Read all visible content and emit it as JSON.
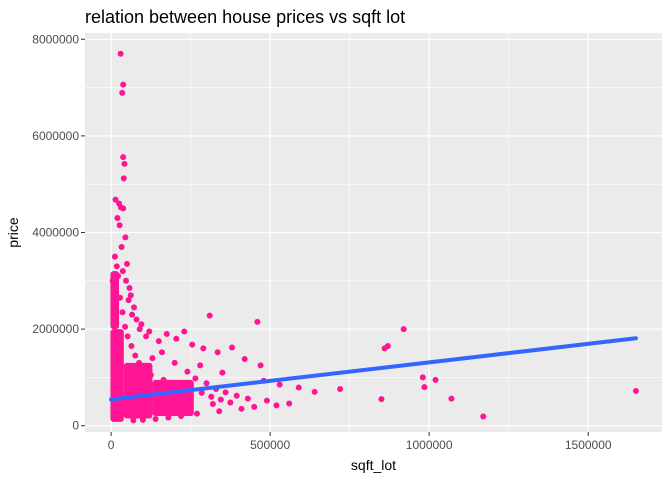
{
  "chart_data": {
    "type": "scatter",
    "title": "relation between house prices vs sqft lot",
    "xlabel": "sqft_lot",
    "ylabel": "price",
    "xlim": [
      -82000,
      1732000
    ],
    "ylim": [
      -130000,
      8130000
    ],
    "x_ticks": [
      0,
      500000,
      1000000,
      1500000
    ],
    "x_tick_labels": [
      "0",
      "500000",
      "1000000",
      "1500000"
    ],
    "y_ticks": [
      0,
      2000000,
      4000000,
      6000000,
      8000000
    ],
    "y_tick_labels": [
      "0",
      "2000000",
      "4000000",
      "6000000",
      "8000000"
    ],
    "grid": true,
    "point_color": "#FF1493",
    "trend_color": "#3366FF",
    "background_color": "#EBEBEB",
    "trend_line": {
      "method": "linear",
      "x": [
        0,
        1650000
      ],
      "y": [
        545000,
        1810000
      ]
    },
    "points": [
      [
        30000,
        7700000
      ],
      [
        38000,
        7060000
      ],
      [
        35000,
        6890000
      ],
      [
        38000,
        5560000
      ],
      [
        42000,
        5420000
      ],
      [
        40000,
        5120000
      ],
      [
        14000,
        4680000
      ],
      [
        25000,
        4600000
      ],
      [
        31000,
        4520000
      ],
      [
        38000,
        4500000
      ],
      [
        20000,
        4300000
      ],
      [
        27000,
        4150000
      ],
      [
        45000,
        3900000
      ],
      [
        33000,
        3700000
      ],
      [
        12000,
        3500000
      ],
      [
        50000,
        3350000
      ],
      [
        37000,
        3200000
      ],
      [
        22000,
        3100000
      ],
      [
        47000,
        3000000
      ],
      [
        58000,
        2850000
      ],
      [
        62000,
        2700000
      ],
      [
        55000,
        2600000
      ],
      [
        72000,
        2450000
      ],
      [
        66000,
        2300000
      ],
      [
        80000,
        2200000
      ],
      [
        95000,
        2100000
      ],
      [
        90000,
        2000000
      ],
      [
        120000,
        1950000
      ],
      [
        110000,
        1850000
      ],
      [
        150000,
        1750000
      ],
      [
        175000,
        1900000
      ],
      [
        205000,
        1800000
      ],
      [
        230000,
        1950000
      ],
      [
        255000,
        1680000
      ],
      [
        310000,
        2280000
      ],
      [
        290000,
        1600000
      ],
      [
        335000,
        1520000
      ],
      [
        380000,
        1620000
      ],
      [
        460000,
        2150000
      ],
      [
        420000,
        1380000
      ],
      [
        470000,
        1250000
      ],
      [
        350000,
        1100000
      ],
      [
        280000,
        1250000
      ],
      [
        160000,
        1520000
      ],
      [
        130000,
        1400000
      ],
      [
        200000,
        1300000
      ],
      [
        240000,
        1120000
      ],
      [
        265000,
        980000
      ],
      [
        300000,
        880000
      ],
      [
        330000,
        760000
      ],
      [
        360000,
        690000
      ],
      [
        395000,
        620000
      ],
      [
        430000,
        560000
      ],
      [
        490000,
        520000
      ],
      [
        520000,
        420000
      ],
      [
        560000,
        460000
      ],
      [
        450000,
        390000
      ],
      [
        410000,
        350000
      ],
      [
        340000,
        300000
      ],
      [
        270000,
        250000
      ],
      [
        220000,
        200000
      ],
      [
        180000,
        170000
      ],
      [
        140000,
        140000
      ],
      [
        100000,
        120000
      ],
      [
        70000,
        110000
      ],
      [
        480000,
        930000
      ],
      [
        530000,
        850000
      ],
      [
        590000,
        790000
      ],
      [
        640000,
        700000
      ],
      [
        720000,
        760000
      ],
      [
        850000,
        550000
      ],
      [
        860000,
        1600000
      ],
      [
        870000,
        1650000
      ],
      [
        920000,
        2000000
      ],
      [
        980000,
        1000000
      ],
      [
        1020000,
        950000
      ],
      [
        985000,
        800000
      ],
      [
        1070000,
        560000
      ],
      [
        1170000,
        190000
      ],
      [
        1650000,
        720000
      ],
      [
        10000,
        2200000
      ],
      [
        15000,
        1600000
      ],
      [
        20000,
        1200000
      ],
      [
        25000,
        900000
      ],
      [
        30000,
        700000
      ],
      [
        35000,
        500000
      ],
      [
        40000,
        350000
      ],
      [
        45000,
        250000
      ],
      [
        60000,
        420000
      ],
      [
        85000,
        380000
      ],
      [
        115000,
        320000
      ],
      [
        145000,
        280000
      ],
      [
        190000,
        350000
      ],
      [
        235000,
        400000
      ],
      [
        320000,
        450000
      ],
      [
        5000,
        3000000
      ],
      [
        8000,
        2400000
      ],
      [
        12000,
        2800000
      ],
      [
        18000,
        3300000
      ],
      [
        28000,
        2650000
      ],
      [
        36000,
        2350000
      ],
      [
        44000,
        2050000
      ],
      [
        52000,
        1850000
      ],
      [
        64000,
        1650000
      ],
      [
        76000,
        1450000
      ],
      [
        88000,
        1300000
      ],
      [
        105000,
        1150000
      ],
      [
        125000,
        1050000
      ],
      [
        165000,
        950000
      ],
      [
        210000,
        850000
      ],
      [
        250000,
        780000
      ],
      [
        285000,
        680000
      ],
      [
        315000,
        600000
      ],
      [
        345000,
        540000
      ],
      [
        375000,
        480000
      ]
    ]
  }
}
